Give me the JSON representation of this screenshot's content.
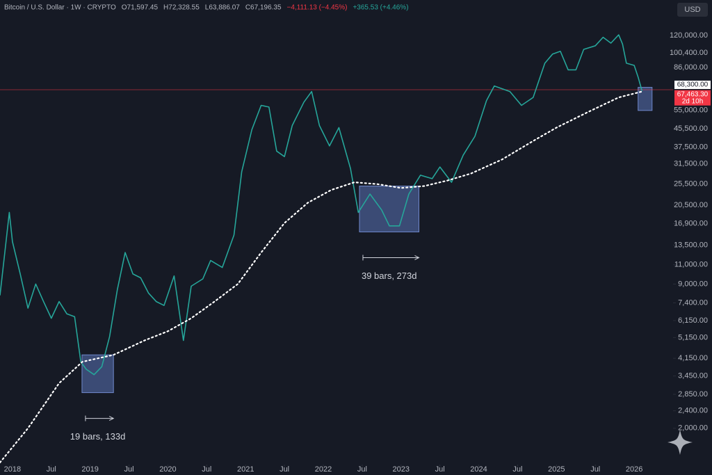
{
  "chart_data": {
    "type": "line",
    "header": [
      "Bitcoin / U.S. Dollar · 1W · CRYPTO",
      "O71,597.45",
      "H72,328.55",
      "L63,886.07",
      "C67,196.35",
      "−4,111.13 (−4.45%)",
      "+365.53 (+4.46%)"
    ],
    "currency": "USD",
    "log_scale": true,
    "x": [
      2017.84,
      2017.96,
      2018.0,
      2018.1,
      2018.2,
      2018.3,
      2018.4,
      2018.5,
      2018.6,
      2018.7,
      2018.8,
      2018.88,
      2018.95,
      2019.05,
      2019.15,
      2019.25,
      2019.35,
      2019.45,
      2019.55,
      2019.65,
      2019.75,
      2019.85,
      2019.95,
      2020.08,
      2020.2,
      2020.3,
      2020.45,
      2020.55,
      2020.7,
      2020.85,
      2020.95,
      2021.08,
      2021.2,
      2021.3,
      2021.4,
      2021.5,
      2021.6,
      2021.75,
      2021.85,
      2021.95,
      2022.08,
      2022.2,
      2022.35,
      2022.45,
      2022.6,
      2022.75,
      2022.85,
      2022.98,
      2023.1,
      2023.25,
      2023.4,
      2023.5,
      2023.65,
      2023.8,
      2023.95,
      2024.1,
      2024.2,
      2024.4,
      2024.55,
      2024.7,
      2024.85,
      2024.95,
      2025.05,
      2025.15,
      2025.25,
      2025.35,
      2025.5,
      2025.6,
      2025.7,
      2025.8,
      2025.85,
      2025.9,
      2026.0,
      2026.05,
      2026.1
    ],
    "series": [
      {
        "color": "#26a69a",
        "values": [
          8000,
          19000,
          14000,
          10000,
          7000,
          9000,
          7500,
          6300,
          7500,
          6600,
          6400,
          4000,
          3700,
          3500,
          3800,
          5200,
          8500,
          12500,
          10000,
          9600,
          8200,
          7500,
          7200,
          9800,
          5000,
          8800,
          9500,
          11500,
          10700,
          15000,
          29000,
          45000,
          58000,
          57000,
          36000,
          34000,
          47000,
          60000,
          67000,
          47000,
          38000,
          46000,
          30000,
          19000,
          23000,
          19500,
          16500,
          16500,
          23000,
          28000,
          27000,
          30500,
          26000,
          34500,
          42000,
          61000,
          71000,
          67000,
          58000,
          63000,
          90000,
          99000,
          102000,
          84000,
          84000,
          104000,
          108000,
          118000,
          111000,
          121000,
          110000,
          90000,
          88000,
          78000,
          67500
        ]
      },
      {
        "color": "#ffffff",
        "style": "dotted",
        "x": [
          2017.84,
          2018.2,
          2018.6,
          2018.9,
          2019.3,
          2019.7,
          2020.0,
          2020.3,
          2020.6,
          2020.9,
          2021.2,
          2021.5,
          2021.8,
          2022.1,
          2022.4,
          2022.7,
          2023.0,
          2023.3,
          2023.6,
          2023.9,
          2024.3,
          2024.7,
          2025.0,
          2025.4,
          2025.8,
          2026.1
        ],
        "values": [
          1400,
          2000,
          3200,
          4000,
          4300,
          5000,
          5500,
          6300,
          7500,
          9000,
          12500,
          17000,
          21000,
          24000,
          26000,
          25500,
          24500,
          25000,
          26500,
          28500,
          33000,
          40000,
          46000,
          54000,
          63000,
          67000
        ]
      }
    ],
    "price_line": {
      "value": 68300,
      "label": "68,300.00",
      "color": "#f23645"
    },
    "last_price": {
      "value": 67463.3,
      "label": "67,463.30",
      "countdown": "2d 10h"
    },
    "highlights": [
      {
        "x": [
          2018.895,
          2019.3
        ],
        "y": [
          2900,
          4300
        ],
        "label": "19 bars, 133d"
      },
      {
        "x": [
          2022.465,
          2023.23
        ],
        "y": [
          15500,
          25000
        ],
        "label": "39 bars, 273d"
      },
      {
        "x": [
          2026.05,
          2026.23
        ],
        "y": [
          55000,
          70000
        ]
      }
    ],
    "xlim": [
      2017.84,
      2026.5
    ],
    "xticks": [
      2018,
      {
        "value": 2018.5,
        "label": "Jul"
      },
      2019,
      {
        "value": 2019.5,
        "label": "Jul"
      },
      2020,
      {
        "value": 2020.5,
        "label": "Jul"
      },
      2021,
      {
        "value": 2021.5,
        "label": "Jul"
      },
      2022,
      {
        "value": 2022.5,
        "label": "Jul"
      },
      2023,
      {
        "value": 2023.5,
        "label": "Jul"
      },
      2024,
      {
        "value": 2024.5,
        "label": "Jul"
      },
      2025,
      {
        "value": 2025.5,
        "label": "Jul"
      },
      2026
    ],
    "ylim": [
      1400,
      140000
    ],
    "yticks": [
      {
        "value": 120000,
        "label": "120,000.00"
      },
      {
        "value": 100400,
        "label": "100,400.00"
      },
      {
        "value": 86000,
        "label": "86,000.00"
      },
      {
        "value": 55000,
        "label": "55,000.00"
      },
      {
        "value": 45500,
        "label": "45,500.00"
      },
      {
        "value": 37500,
        "label": "37,500.00"
      },
      {
        "value": 31500,
        "label": "31,500.00"
      },
      {
        "value": 25500,
        "label": "25,500.00"
      },
      {
        "value": 20500,
        "label": "20,500.00"
      },
      {
        "value": 16900,
        "label": "16,900.00"
      },
      {
        "value": 13500,
        "label": "13,500.00"
      },
      {
        "value": 11000,
        "label": "11,000.00"
      },
      {
        "value": 9000,
        "label": "9,000.00"
      },
      {
        "value": 7400,
        "label": "7,400.00"
      },
      {
        "value": 6150,
        "label": "6,150.00"
      },
      {
        "value": 5150,
        "label": "5,150.00"
      },
      {
        "value": 4150,
        "label": "4,150.00"
      },
      {
        "value": 3450,
        "label": "3,450.00"
      },
      {
        "value": 2850,
        "label": "2,850.00"
      },
      {
        "value": 2400,
        "label": "2,400.00"
      },
      {
        "value": 2000,
        "label": "2,000.00"
      }
    ]
  }
}
